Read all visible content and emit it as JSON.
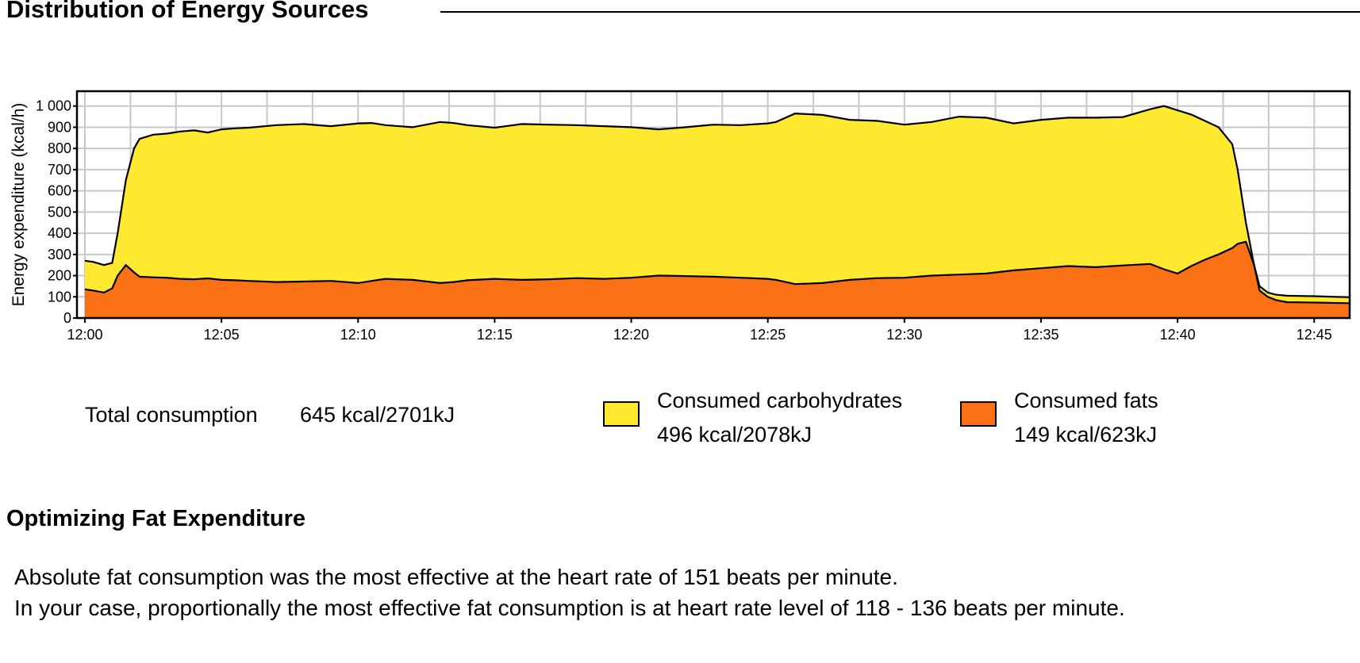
{
  "sections": {
    "distribution_title": "Distribution of Energy Sources",
    "optimizing_title": "Optimizing Fat Expenditure"
  },
  "summary": {
    "total_label": "Total consumption",
    "total_value": "645 kcal/2701kJ",
    "carbs_name": "Consumed carbohydrates",
    "carbs_value": "496 kcal/2078kJ",
    "fats_name": "Consumed fats",
    "fats_value": "149 kcal/623kJ"
  },
  "paragraphs": {
    "line1": "Absolute fat consumption was the most effective at the heart rate of  151 beats per minute.",
    "line2": "In your case, proportionally the most effective fat consumption is at heart rate level of 118 - 136 beats per minute."
  },
  "chart_data": {
    "type": "area",
    "stacked": true,
    "title": "Distribution of Energy Sources",
    "xlabel": "",
    "ylabel": "Energy expenditure (kcal/h)",
    "xlim_minutes": [
      0,
      46.3
    ],
    "ylim": [
      0,
      1070
    ],
    "x_ticks": [
      "12:00",
      "12:05",
      "12:10",
      "12:15",
      "12:20",
      "12:25",
      "12:30",
      "12:35",
      "12:40",
      "12:45"
    ],
    "x_tick_minutes": [
      0,
      5,
      10,
      15,
      20,
      25,
      30,
      35,
      40,
      45
    ],
    "y_ticks": [
      0,
      100,
      200,
      300,
      400,
      500,
      600,
      700,
      800,
      900,
      1000
    ],
    "y_tick_labels": [
      "0",
      "100",
      "200",
      "300",
      "400",
      "500",
      "600",
      "700",
      "800",
      "900",
      "1 000"
    ],
    "grid": true,
    "legend": "bottom",
    "x_minutes": [
      0,
      0.3,
      0.7,
      1.0,
      1.2,
      1.5,
      1.8,
      2.0,
      2.5,
      3,
      3.5,
      4,
      4.5,
      5,
      5.5,
      6,
      7,
      8,
      9,
      10,
      10.5,
      11,
      12,
      13,
      13.5,
      14,
      15,
      16,
      17,
      18,
      19,
      20,
      21,
      22,
      23,
      24,
      25,
      25.3,
      26,
      27,
      28,
      29,
      30,
      31,
      32,
      33,
      34,
      35,
      36,
      37,
      38,
      39,
      39.5,
      40,
      40.5,
      41,
      41.5,
      42,
      42.2,
      42.5,
      42.8,
      43,
      43.3,
      43.6,
      44,
      45,
      46.3
    ],
    "series": [
      {
        "name": "Consumed carbohydrates",
        "color": "#FFE930",
        "total_values": [
          270,
          265,
          250,
          260,
          400,
          650,
          800,
          845,
          865,
          870,
          880,
          885,
          875,
          890,
          895,
          898,
          910,
          915,
          905,
          918,
          920,
          910,
          900,
          925,
          920,
          910,
          898,
          915,
          912,
          910,
          905,
          900,
          890,
          900,
          912,
          910,
          918,
          925,
          965,
          958,
          935,
          930,
          912,
          925,
          950,
          945,
          918,
          935,
          945,
          945,
          948,
          985,
          1000,
          980,
          960,
          930,
          900,
          820,
          700,
          450,
          250,
          150,
          120,
          110,
          105,
          103,
          98
        ]
      },
      {
        "name": "Consumed fats",
        "color": "#FA7014",
        "values": [
          135,
          130,
          120,
          140,
          200,
          250,
          215,
          195,
          192,
          190,
          185,
          183,
          187,
          180,
          178,
          175,
          170,
          172,
          175,
          165,
          175,
          185,
          180,
          165,
          170,
          178,
          185,
          180,
          183,
          188,
          185,
          190,
          200,
          198,
          195,
          190,
          185,
          180,
          160,
          165,
          180,
          188,
          190,
          200,
          205,
          210,
          225,
          235,
          245,
          240,
          248,
          255,
          230,
          210,
          245,
          275,
          300,
          330,
          350,
          360,
          250,
          130,
          100,
          85,
          75,
          73,
          70
        ]
      }
    ],
    "totals": {
      "total": "645 kcal/2701kJ",
      "carbohydrates": "496 kcal/2078kJ",
      "fats": "149 kcal/623kJ"
    }
  }
}
